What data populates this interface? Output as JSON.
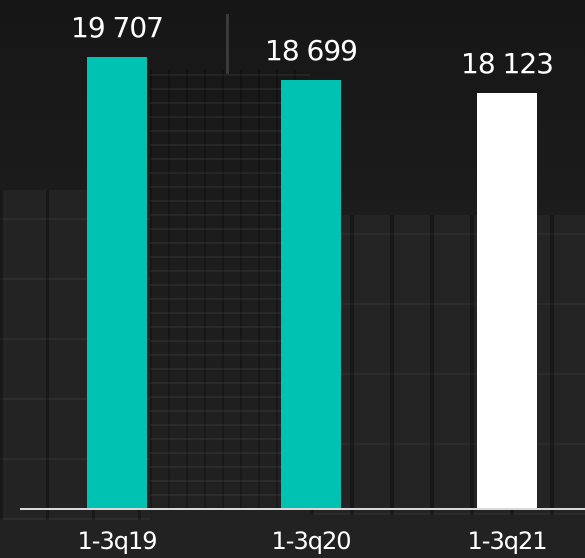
{
  "chart_data": {
    "type": "bar",
    "categories": [
      "1-3q19",
      "1-3q20",
      "1-3q21"
    ],
    "values": [
      19707,
      18699,
      18123
    ],
    "value_labels": [
      "19 707",
      "18 699",
      "18 123"
    ],
    "bar_colors": [
      "#00c2b2",
      "#00c2b2",
      "#ffffff"
    ],
    "title": "",
    "xlabel": "",
    "ylabel": "",
    "grid": false,
    "legend": "none"
  },
  "colors": {
    "accent": "#00c2b2",
    "highlight": "#ffffff",
    "background": "#1b1b1b"
  }
}
